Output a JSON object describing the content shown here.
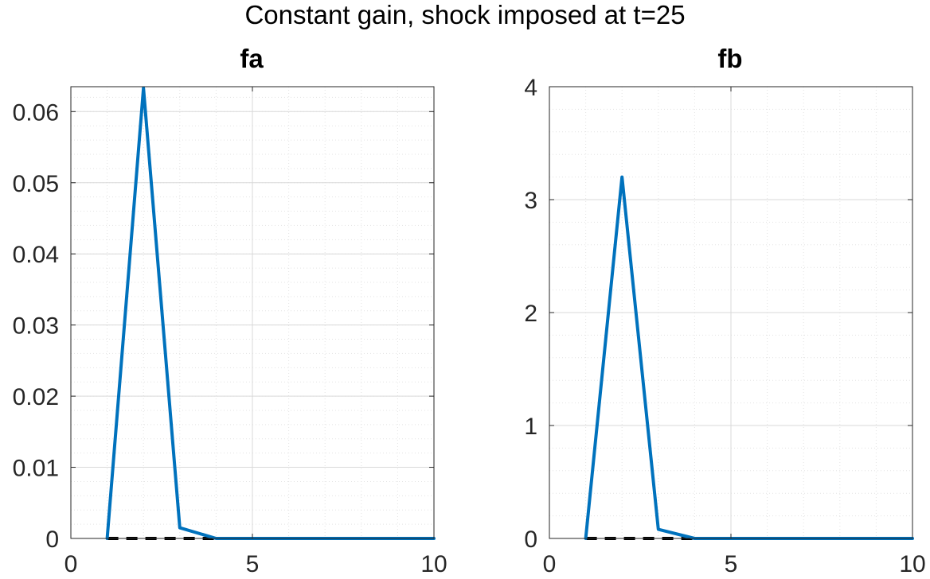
{
  "figure": {
    "title": "Constant gain, shock imposed at t=25"
  },
  "colors": {
    "series": "#0072BD",
    "baseline": "#000000",
    "axis": "#262626",
    "grid_major": "#d9d9d9",
    "grid_minor": "#e3e3e3"
  },
  "chart_data": [
    {
      "type": "line",
      "title": "fa",
      "xlabel": "",
      "ylabel": "",
      "xlim": [
        0,
        10
      ],
      "ylim": [
        0,
        0.0635
      ],
      "xticks": [
        0,
        5,
        10
      ],
      "xtick_labels": [
        "0",
        "5",
        "10"
      ],
      "yticks": [
        0,
        0.01,
        0.02,
        0.03,
        0.04,
        0.05,
        0.06
      ],
      "ytick_labels": [
        "0",
        "0.01",
        "0.02",
        "0.03",
        "0.04",
        "0.05",
        "0.06"
      ],
      "grid": "on, with minor grid",
      "series": [
        {
          "x": [
            1,
            2,
            3,
            4,
            5,
            6,
            7,
            8,
            9,
            10
          ],
          "y": [
            0,
            0.0633,
            0.0015,
            0,
            0,
            0,
            0,
            0,
            0,
            0
          ],
          "style": "solid"
        }
      ],
      "baseline": {
        "x": [
          1,
          4
        ],
        "y": 0,
        "style": "dashed"
      }
    },
    {
      "type": "line",
      "title": "fb",
      "xlabel": "",
      "ylabel": "",
      "xlim": [
        0,
        10
      ],
      "ylim": [
        0,
        4
      ],
      "xticks": [
        0,
        5,
        10
      ],
      "xtick_labels": [
        "0",
        "5",
        "10"
      ],
      "yticks": [
        0,
        1,
        2,
        3,
        4
      ],
      "ytick_labels": [
        "0",
        "1",
        "2",
        "3",
        "4"
      ],
      "grid": "on, with minor grid",
      "series": [
        {
          "x": [
            1,
            2,
            3,
            4,
            5,
            6,
            7,
            8,
            9,
            10
          ],
          "y": [
            0,
            3.2,
            0.08,
            0,
            0,
            0,
            0,
            0,
            0,
            0
          ],
          "style": "solid"
        }
      ],
      "baseline": {
        "x": [
          1,
          4
        ],
        "y": 0,
        "style": "dashed"
      }
    }
  ]
}
